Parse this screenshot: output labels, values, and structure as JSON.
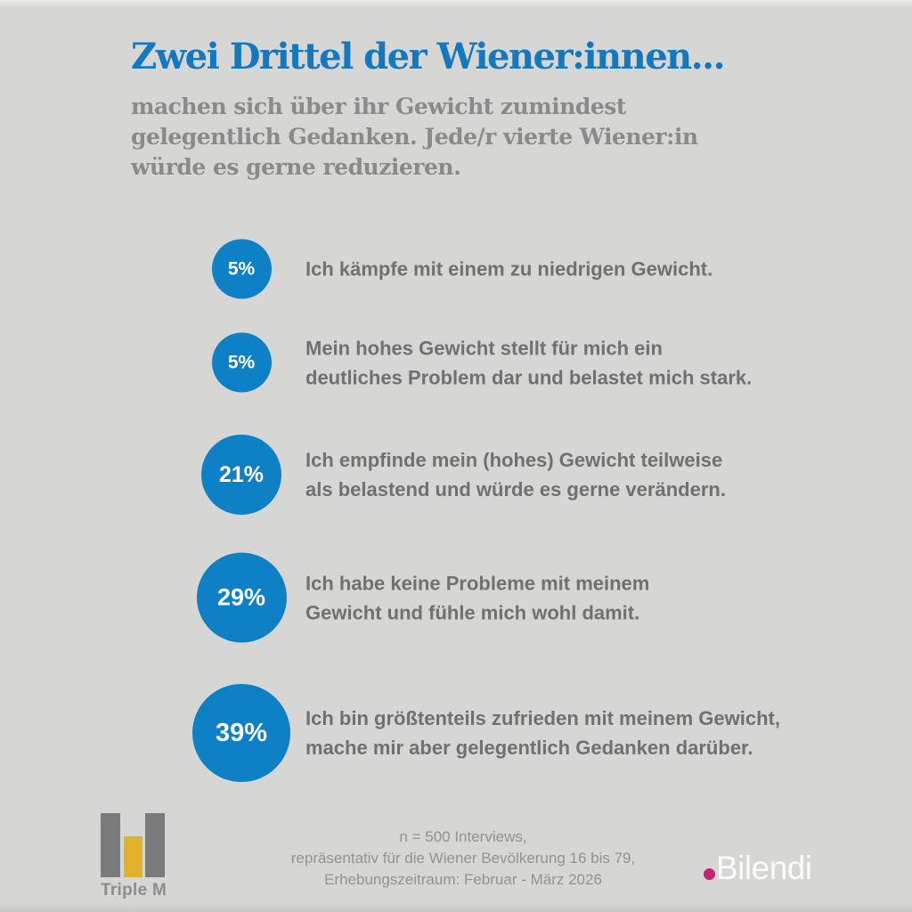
{
  "page": {
    "background": "#d6d6d5"
  },
  "header": {
    "title": "Zwei Drittel der Wiener:innen...",
    "subtitle_line1": "machen sich über ihr Gewicht zumindest",
    "subtitle_line2": "gelegentlich Gedanken. Jede/r vierte Wiener:in",
    "subtitle_line3": "würde es gerne reduzieren."
  },
  "chart_data": {
    "type": "bubble",
    "unit": "%",
    "title": "Zwei Drittel der Wiener:innen...",
    "subtitle": "machen sich über ihr Gewicht zumindest gelegentlich Gedanken. Jede/r vierte Wiener:in würde es gerne reduzieren.",
    "categories": [
      "Ich kämpfe mit einem zu niedrigen Gewicht.",
      "Mein hohes Gewicht stellt für mich ein deutliches Problem dar und belastet mich stark.",
      "Ich empfinde mein (hohes) Gewicht teilweise als belastend und würde es gerne verändern.",
      "Ich habe keine Probleme mit meinem Gewicht und fühle mich wohl damit.",
      "Ich bin größtenteils zufrieden mit meinem Gewicht, mache mir aber gelegentlich Gedanken darüber."
    ],
    "values": [
      5,
      5,
      21,
      29,
      39
    ],
    "bubble_color": "#0d80c6",
    "legend": "none",
    "source": "n = 500 Interviews, repräsentativ für die Wiener Bevölkerung 16 bis 79, Erhebungszeitraum: Februar - März 2026"
  },
  "rows": [
    {
      "value": "5%",
      "line1": "Ich kämpfe mit einem zu niedrigen Gewicht.",
      "line2": ""
    },
    {
      "value": "5%",
      "line1": "Mein hohes Gewicht stellt für mich ein",
      "line2": "deutliches Problem dar und belastet mich stark."
    },
    {
      "value": "21%",
      "line1": "Ich empfinde mein (hohes) Gewicht teilweise",
      "line2": "als belastend und würde es gerne verändern."
    },
    {
      "value": "29%",
      "line1": "Ich habe keine Probleme mit meinem",
      "line2": "Gewicht und fühle mich wohl damit."
    },
    {
      "value": "39%",
      "line1": "Ich bin größtenteils zufrieden mit meinem Gewicht,",
      "line2": "mache mir aber gelegentlich Gedanken darüber."
    }
  ],
  "footer": {
    "note_line1": "n = 500 Interviews,",
    "note_line2": "repräsentativ für die Wiener Bevölkerung 16 bis 79,",
    "note_line3": "Erhebungszeitraum: Februar - März 2026",
    "triple_m_label": "Triple M",
    "bilendi_label": "Bilendi"
  },
  "colors": {
    "title_blue": "#1478be",
    "bubble_blue": "#0d80c6",
    "subtitle_gray": "#8a8a8b",
    "statement_gray": "#707072",
    "note_gray": "#929292",
    "bar_gray": "#7b7b7b",
    "bar_yellow": "#e3b02c",
    "bilendi_dot_pink": "#c32572",
    "background": "#d6d6d5"
  }
}
